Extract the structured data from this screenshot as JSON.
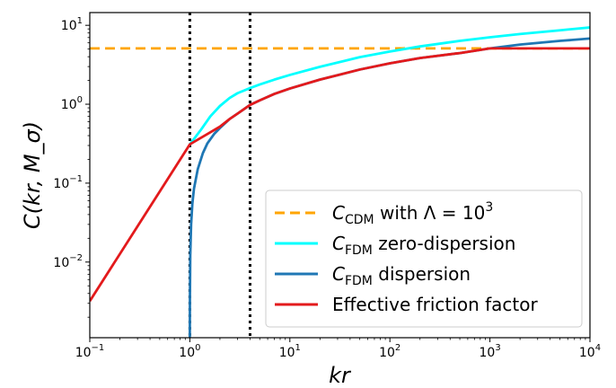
{
  "chart_data": {
    "type": "line",
    "title": "",
    "xlabel": "kr",
    "ylabel": "C(kr, M_σ)",
    "xscale": "log",
    "yscale": "log",
    "xlim": [
      0.1,
      10000
    ],
    "ylim": [
      0.0011,
      14.5
    ],
    "grid": false,
    "legend_position": "lower-right",
    "x_ticks": [
      {
        "value": 0.1,
        "base": "10",
        "exp": "−1"
      },
      {
        "value": 1,
        "base": "10",
        "exp": "0"
      },
      {
        "value": 10,
        "base": "10",
        "exp": "1"
      },
      {
        "value": 100,
        "base": "10",
        "exp": "2"
      },
      {
        "value": 1000,
        "base": "10",
        "exp": "3"
      },
      {
        "value": 10000,
        "base": "10",
        "exp": "4"
      }
    ],
    "y_ticks": [
      {
        "value": 0.01,
        "base": "10",
        "exp": "−2"
      },
      {
        "value": 0.1,
        "base": "10",
        "exp": "−1"
      },
      {
        "value": 1,
        "base": "10",
        "exp": "0"
      },
      {
        "value": 10,
        "base": "10",
        "exp": "1"
      }
    ],
    "vlines": [
      {
        "x": 1,
        "color": "#000000",
        "style": "dotted"
      },
      {
        "x": 4,
        "color": "#000000",
        "style": "dotted"
      }
    ],
    "series": [
      {
        "name": "C_CDM with Λ = 10^3",
        "legend": {
          "main": "C",
          "sub": "CDM",
          "tail": " with Λ = 10",
          "sup": "3"
        },
        "color": "#ffa500",
        "style": "dashed",
        "x": [
          0.1,
          10000
        ],
        "y": [
          5.1,
          5.1
        ]
      },
      {
        "name": "C_FDM zero-dispersion",
        "legend": {
          "main": "C",
          "sub": "FDM",
          "tail": " zero-dispersion",
          "sup": ""
        },
        "color": "#00ffff",
        "style": "solid",
        "x": [
          1,
          1.3,
          1.6,
          2,
          2.5,
          3,
          4,
          5,
          7,
          10,
          20,
          50,
          100,
          200,
          500,
          1000,
          2000,
          5000,
          10000
        ],
        "y": [
          0.31,
          0.48,
          0.7,
          0.95,
          1.2,
          1.38,
          1.6,
          1.78,
          2.05,
          2.35,
          2.98,
          3.95,
          4.65,
          5.4,
          6.35,
          7.05,
          7.75,
          8.65,
          9.4
        ]
      },
      {
        "name": "C_FDM dispersion",
        "legend": {
          "main": "C",
          "sub": "FDM",
          "tail": " dispersion",
          "sup": ""
        },
        "color": "#1f77b4",
        "style": "solid",
        "x": [
          1.0,
          1.002,
          1.01,
          1.03,
          1.06,
          1.1,
          1.2,
          1.35,
          1.5,
          1.75,
          2,
          2.5,
          3,
          4,
          5,
          7,
          10,
          20,
          50,
          100,
          200,
          500,
          1000,
          2000,
          5000,
          10000
        ],
        "y": [
          0.0011,
          0.0035,
          0.012,
          0.03,
          0.055,
          0.085,
          0.15,
          0.24,
          0.32,
          0.42,
          0.5,
          0.65,
          0.76,
          0.98,
          1.12,
          1.35,
          1.58,
          2.05,
          2.75,
          3.3,
          3.85,
          4.45,
          5.1,
          5.7,
          6.35,
          6.8
        ]
      },
      {
        "name": "Effective friction factor",
        "legend": {
          "main": "Effective friction factor",
          "sub": "",
          "tail": "",
          "sup": ""
        },
        "color": "#e31a1c",
        "style": "solid",
        "x": [
          0.1,
          1,
          1.5,
          2,
          2.5,
          3,
          4,
          5,
          7,
          10,
          20,
          50,
          100,
          200,
          500,
          1000,
          10000
        ],
        "y": [
          0.0032,
          0.31,
          0.42,
          0.52,
          0.65,
          0.76,
          0.98,
          1.12,
          1.35,
          1.58,
          2.05,
          2.75,
          3.3,
          3.85,
          4.45,
          5.1,
          5.1
        ]
      }
    ]
  }
}
